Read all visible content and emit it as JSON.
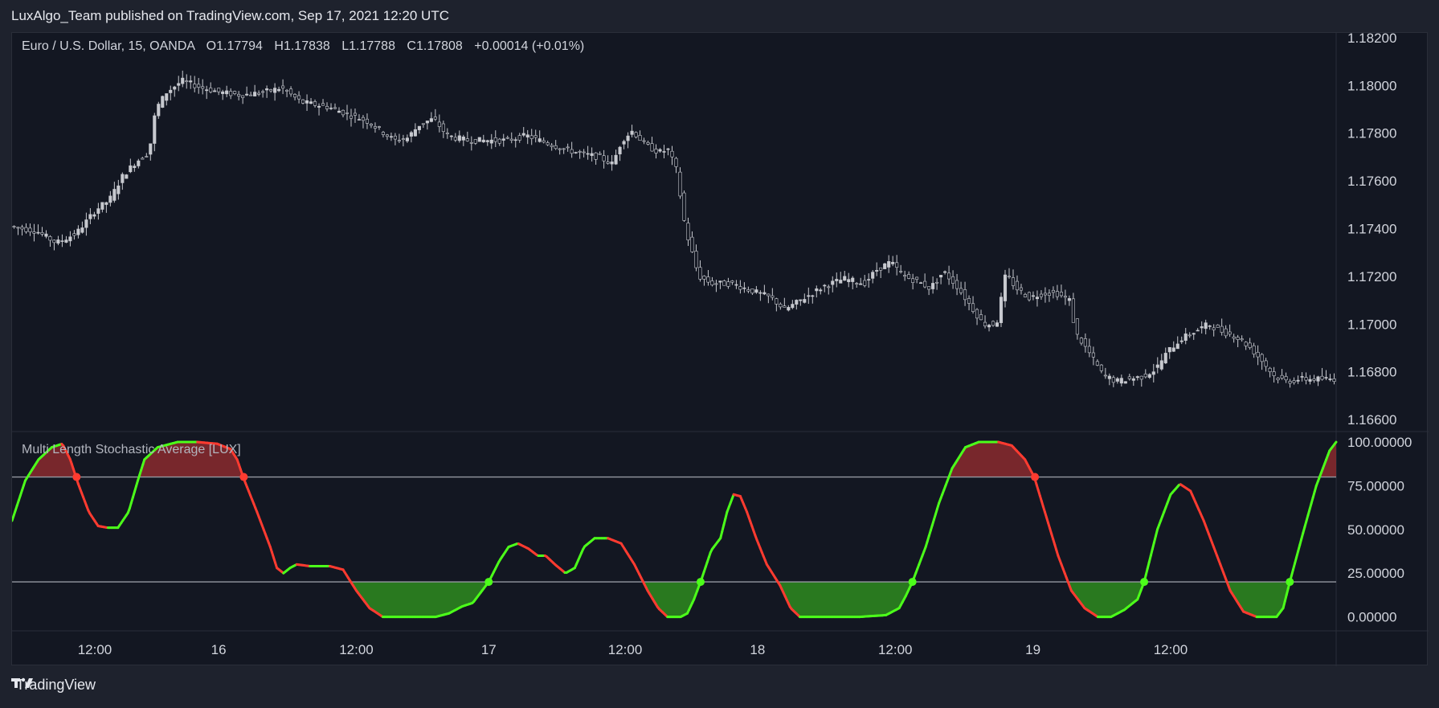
{
  "header": {
    "published": "LuxAlgo_Team published on TradingView.com, Sep 17, 2021 12:20 UTC"
  },
  "legend": {
    "symbol": "Euro / U.S. Dollar, 15, OANDA",
    "open": "O1.17794",
    "high": "H1.17838",
    "low": "L1.17788",
    "close": "C1.17808",
    "change": "+0.00014 (+0.01%)"
  },
  "indicator": {
    "name": "Multi Length Stochastic Average [LUX]"
  },
  "footer": {
    "brand": "TradingView"
  },
  "colors": {
    "background": "#131722",
    "candle": "#c7c9cf",
    "osc_up": "#4cff1a",
    "osc_down": "#ff3b30",
    "fill_overbought": "#8b2a2e",
    "fill_oversold": "#2e8b1e",
    "level_line": "#9598a1"
  },
  "chart_data": [
    {
      "type": "candlestick",
      "title": "Euro / U.S. Dollar, 15, OANDA",
      "ylim": [
        1.1655,
        1.1822
      ],
      "y_ticks": [
        "1.18200",
        "1.18000",
        "1.17800",
        "1.17600",
        "1.17400",
        "1.17200",
        "1.17000",
        "1.16800",
        "1.16600"
      ],
      "y_tick_values": [
        1.182,
        1.18,
        1.178,
        1.176,
        1.174,
        1.172,
        1.17,
        1.168,
        1.166
      ],
      "x_ticks": [
        "12:00",
        "16",
        "12:00",
        "17",
        "12:00",
        "18",
        "12:00",
        "19",
        "12:00"
      ],
      "x_tick_positions": [
        0.0625,
        0.156,
        0.26,
        0.36,
        0.463,
        0.563,
        0.667,
        0.771,
        0.875
      ],
      "close_path": [
        [
          0.0,
          1.1741
        ],
        [
          0.02,
          1.1739
        ],
        [
          0.035,
          1.1734
        ],
        [
          0.05,
          1.1738
        ],
        [
          0.065,
          1.1748
        ],
        [
          0.075,
          1.1752
        ],
        [
          0.085,
          1.1762
        ],
        [
          0.095,
          1.1768
        ],
        [
          0.105,
          1.1772
        ],
        [
          0.11,
          1.179
        ],
        [
          0.118,
          1.1797
        ],
        [
          0.13,
          1.1802
        ],
        [
          0.145,
          1.1799
        ],
        [
          0.16,
          1.1797
        ],
        [
          0.175,
          1.1796
        ],
        [
          0.19,
          1.1797
        ],
        [
          0.205,
          1.1799
        ],
        [
          0.22,
          1.1793
        ],
        [
          0.24,
          1.1791
        ],
        [
          0.255,
          1.1788
        ],
        [
          0.27,
          1.1785
        ],
        [
          0.28,
          1.1781
        ],
        [
          0.29,
          1.1777
        ],
        [
          0.3,
          1.1778
        ],
        [
          0.31,
          1.1784
        ],
        [
          0.32,
          1.1786
        ],
        [
          0.33,
          1.1779
        ],
        [
          0.345,
          1.1777
        ],
        [
          0.36,
          1.1777
        ],
        [
          0.375,
          1.1777
        ],
        [
          0.39,
          1.1779
        ],
        [
          0.405,
          1.1776
        ],
        [
          0.42,
          1.1773
        ],
        [
          0.435,
          1.1771
        ],
        [
          0.445,
          1.177
        ],
        [
          0.455,
          1.1767
        ],
        [
          0.462,
          1.1777
        ],
        [
          0.47,
          1.1781
        ],
        [
          0.48,
          1.1775
        ],
        [
          0.49,
          1.1772
        ],
        [
          0.497,
          1.1773
        ],
        [
          0.503,
          1.1765
        ],
        [
          0.51,
          1.174
        ],
        [
          0.515,
          1.173
        ],
        [
          0.52,
          1.172
        ],
        [
          0.53,
          1.1717
        ],
        [
          0.545,
          1.1717
        ],
        [
          0.56,
          1.1714
        ],
        [
          0.575,
          1.1711
        ],
        [
          0.585,
          1.1706
        ],
        [
          0.6,
          1.1711
        ],
        [
          0.615,
          1.1716
        ],
        [
          0.63,
          1.1719
        ],
        [
          0.645,
          1.1717
        ],
        [
          0.655,
          1.1723
        ],
        [
          0.665,
          1.1726
        ],
        [
          0.675,
          1.172
        ],
        [
          0.685,
          1.1718
        ],
        [
          0.695,
          1.1715
        ],
        [
          0.705,
          1.1722
        ],
        [
          0.715,
          1.1716
        ],
        [
          0.725,
          1.1708
        ],
        [
          0.735,
          1.17
        ],
        [
          0.745,
          1.17
        ],
        [
          0.752,
          1.1721
        ],
        [
          0.76,
          1.1715
        ],
        [
          0.77,
          1.1711
        ],
        [
          0.78,
          1.1713
        ],
        [
          0.79,
          1.1713
        ],
        [
          0.8,
          1.171
        ],
        [
          0.805,
          1.1696
        ],
        [
          0.815,
          1.1688
        ],
        [
          0.825,
          1.1679
        ],
        [
          0.835,
          1.1676
        ],
        [
          0.845,
          1.1677
        ],
        [
          0.855,
          1.1678
        ],
        [
          0.865,
          1.1681
        ],
        [
          0.875,
          1.1689
        ],
        [
          0.885,
          1.1694
        ],
        [
          0.895,
          1.1697
        ],
        [
          0.905,
          1.17
        ],
        [
          0.915,
          1.1697
        ],
        [
          0.925,
          1.1695
        ],
        [
          0.935,
          1.1691
        ],
        [
          0.945,
          1.1685
        ],
        [
          0.955,
          1.1678
        ],
        [
          0.965,
          1.1676
        ],
        [
          0.975,
          1.1677
        ],
        [
          0.985,
          1.1677
        ],
        [
          1.0,
          1.1677
        ]
      ]
    },
    {
      "type": "line",
      "title": "Multi Length Stochastic Average [LUX]",
      "ylim": [
        -8,
        106
      ],
      "y_ticks": [
        "100.00000",
        "75.00000",
        "50.00000",
        "25.00000",
        "0.00000"
      ],
      "y_tick_values": [
        100,
        75,
        50,
        25,
        0
      ],
      "overbought": 80,
      "oversold": 20,
      "series": [
        {
          "values": [
            [
              0.0,
              55
            ],
            [
              0.01,
              78
            ],
            [
              0.02,
              90
            ],
            [
              0.03,
              97
            ],
            [
              0.038,
              99
            ],
            [
              0.044,
              90
            ],
            [
              0.05,
              76
            ],
            [
              0.058,
              60
            ],
            [
              0.065,
              52
            ],
            [
              0.072,
              51
            ],
            [
              0.08,
              51
            ],
            [
              0.088,
              60
            ],
            [
              0.095,
              78
            ],
            [
              0.1,
              90
            ],
            [
              0.11,
              97
            ],
            [
              0.125,
              100
            ],
            [
              0.14,
              100
            ],
            [
              0.155,
              99
            ],
            [
              0.165,
              96
            ],
            [
              0.17,
              90
            ],
            [
              0.175,
              79
            ],
            [
              0.185,
              60
            ],
            [
              0.195,
              40
            ],
            [
              0.2,
              28
            ],
            [
              0.205,
              25
            ],
            [
              0.21,
              28
            ],
            [
              0.215,
              30
            ],
            [
              0.225,
              29
            ],
            [
              0.24,
              29
            ],
            [
              0.25,
              27
            ],
            [
              0.26,
              15
            ],
            [
              0.27,
              5
            ],
            [
              0.28,
              0
            ],
            [
              0.295,
              0
            ],
            [
              0.31,
              0
            ],
            [
              0.32,
              0
            ],
            [
              0.33,
              2
            ],
            [
              0.34,
              6
            ],
            [
              0.348,
              8
            ],
            [
              0.355,
              15
            ],
            [
              0.36,
              20
            ],
            [
              0.368,
              32
            ],
            [
              0.375,
              40
            ],
            [
              0.382,
              42
            ],
            [
              0.39,
              39
            ],
            [
              0.397,
              35
            ],
            [
              0.403,
              35
            ],
            [
              0.41,
              30
            ],
            [
              0.418,
              25
            ],
            [
              0.425,
              28
            ],
            [
              0.432,
              40
            ],
            [
              0.44,
              45
            ],
            [
              0.45,
              45
            ],
            [
              0.46,
              42
            ],
            [
              0.47,
              30
            ],
            [
              0.48,
              15
            ],
            [
              0.488,
              5
            ],
            [
              0.495,
              0
            ],
            [
              0.505,
              0
            ],
            [
              0.51,
              2
            ],
            [
              0.515,
              10
            ],
            [
              0.52,
              20
            ],
            [
              0.528,
              38
            ],
            [
              0.535,
              45
            ],
            [
              0.54,
              60
            ],
            [
              0.545,
              70
            ],
            [
              0.55,
              69
            ],
            [
              0.555,
              60
            ],
            [
              0.562,
              45
            ],
            [
              0.57,
              30
            ],
            [
              0.58,
              18
            ],
            [
              0.588,
              5
            ],
            [
              0.595,
              0
            ],
            [
              0.615,
              0
            ],
            [
              0.64,
              0
            ],
            [
              0.66,
              1
            ],
            [
              0.67,
              5
            ],
            [
              0.675,
              12
            ],
            [
              0.68,
              20
            ],
            [
              0.69,
              40
            ],
            [
              0.7,
              65
            ],
            [
              0.71,
              85
            ],
            [
              0.72,
              97
            ],
            [
              0.73,
              100
            ],
            [
              0.745,
              100
            ],
            [
              0.755,
              98
            ],
            [
              0.765,
              90
            ],
            [
              0.772,
              80
            ],
            [
              0.78,
              60
            ],
            [
              0.79,
              35
            ],
            [
              0.8,
              15
            ],
            [
              0.81,
              5
            ],
            [
              0.82,
              0
            ],
            [
              0.83,
              0
            ],
            [
              0.84,
              4
            ],
            [
              0.85,
              10
            ],
            [
              0.855,
              20
            ],
            [
              0.865,
              50
            ],
            [
              0.875,
              70
            ],
            [
              0.882,
              76
            ],
            [
              0.89,
              72
            ],
            [
              0.9,
              55
            ],
            [
              0.91,
              35
            ],
            [
              0.92,
              15
            ],
            [
              0.93,
              3
            ],
            [
              0.94,
              0
            ],
            [
              0.955,
              0
            ],
            [
              0.96,
              5
            ],
            [
              0.965,
              20
            ],
            [
              0.975,
              48
            ],
            [
              0.985,
              75
            ],
            [
              0.995,
              95
            ],
            [
              1.0,
              100
            ]
          ]
        }
      ]
    }
  ]
}
